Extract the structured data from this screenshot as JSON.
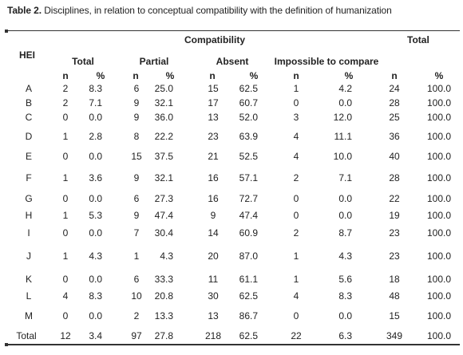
{
  "caption": {
    "label": "Table 2.",
    "text": " Disciplines, in relation to conceptual compatibility with the definition of humanization"
  },
  "headers": {
    "hei": "HEI",
    "compatibility": "Compatibility",
    "total_group": "Total",
    "groups": [
      "Total",
      "Partial",
      "Absent",
      "Impossible to compare"
    ],
    "sub": [
      "n",
      "%",
      "n",
      "%",
      "n",
      "%",
      "n",
      "%",
      "n",
      "%"
    ]
  },
  "rows": [
    [
      "A",
      "2",
      "8.3",
      "6",
      "25.0",
      "15",
      "62.5",
      "1",
      "4.2",
      "24",
      "100.0"
    ],
    [
      "B",
      "2",
      "7.1",
      "9",
      "32.1",
      "17",
      "60.7",
      "0",
      "0.0",
      "28",
      "100.0"
    ],
    [
      "C",
      "0",
      "0.0",
      "9",
      "36.0",
      "13",
      "52.0",
      "3",
      "12.0",
      "25",
      "100.0"
    ],
    [
      "D",
      "1",
      "2.8",
      "8",
      "22.2",
      "23",
      "63.9",
      "4",
      "11.1",
      "36",
      "100.0"
    ],
    [
      "E",
      "0",
      "0.0",
      "15",
      "37.5",
      "21",
      "52.5",
      "4",
      "10.0",
      "40",
      "100.0"
    ],
    [
      "F",
      "1",
      "3.6",
      "9",
      "32.1",
      "16",
      "57.1",
      "2",
      "7.1",
      "28",
      "100.0"
    ],
    [
      "G",
      "0",
      "0.0",
      "6",
      "27.3",
      "16",
      "72.7",
      "0",
      "0.0",
      "22",
      "100.0"
    ],
    [
      "H",
      "1",
      "5.3",
      "9",
      "47.4",
      "9",
      "47.4",
      "0",
      "0.0",
      "19",
      "100.0"
    ],
    [
      "I",
      "0",
      "0.0",
      "7",
      "30.4",
      "14",
      "60.9",
      "2",
      "8.7",
      "23",
      "100.0"
    ],
    [
      "J",
      "1",
      "4.3",
      "1",
      "4.3",
      "20",
      "87.0",
      "1",
      "4.3",
      "23",
      "100.0"
    ],
    [
      "K",
      "0",
      "0.0",
      "6",
      "33.3",
      "11",
      "61.1",
      "1",
      "5.6",
      "18",
      "100.0"
    ],
    [
      "L",
      "4",
      "8.3",
      "10",
      "20.8",
      "30",
      "62.5",
      "4",
      "8.3",
      "48",
      "100.0"
    ],
    [
      "M",
      "0",
      "0.0",
      "2",
      "13.3",
      "13",
      "86.7",
      "0",
      "0.0",
      "15",
      "100.0"
    ],
    [
      "Total",
      "12",
      "3.4",
      "97",
      "27.8",
      "218",
      "62.5",
      "22",
      "6.3",
      "349",
      "100.0"
    ]
  ]
}
